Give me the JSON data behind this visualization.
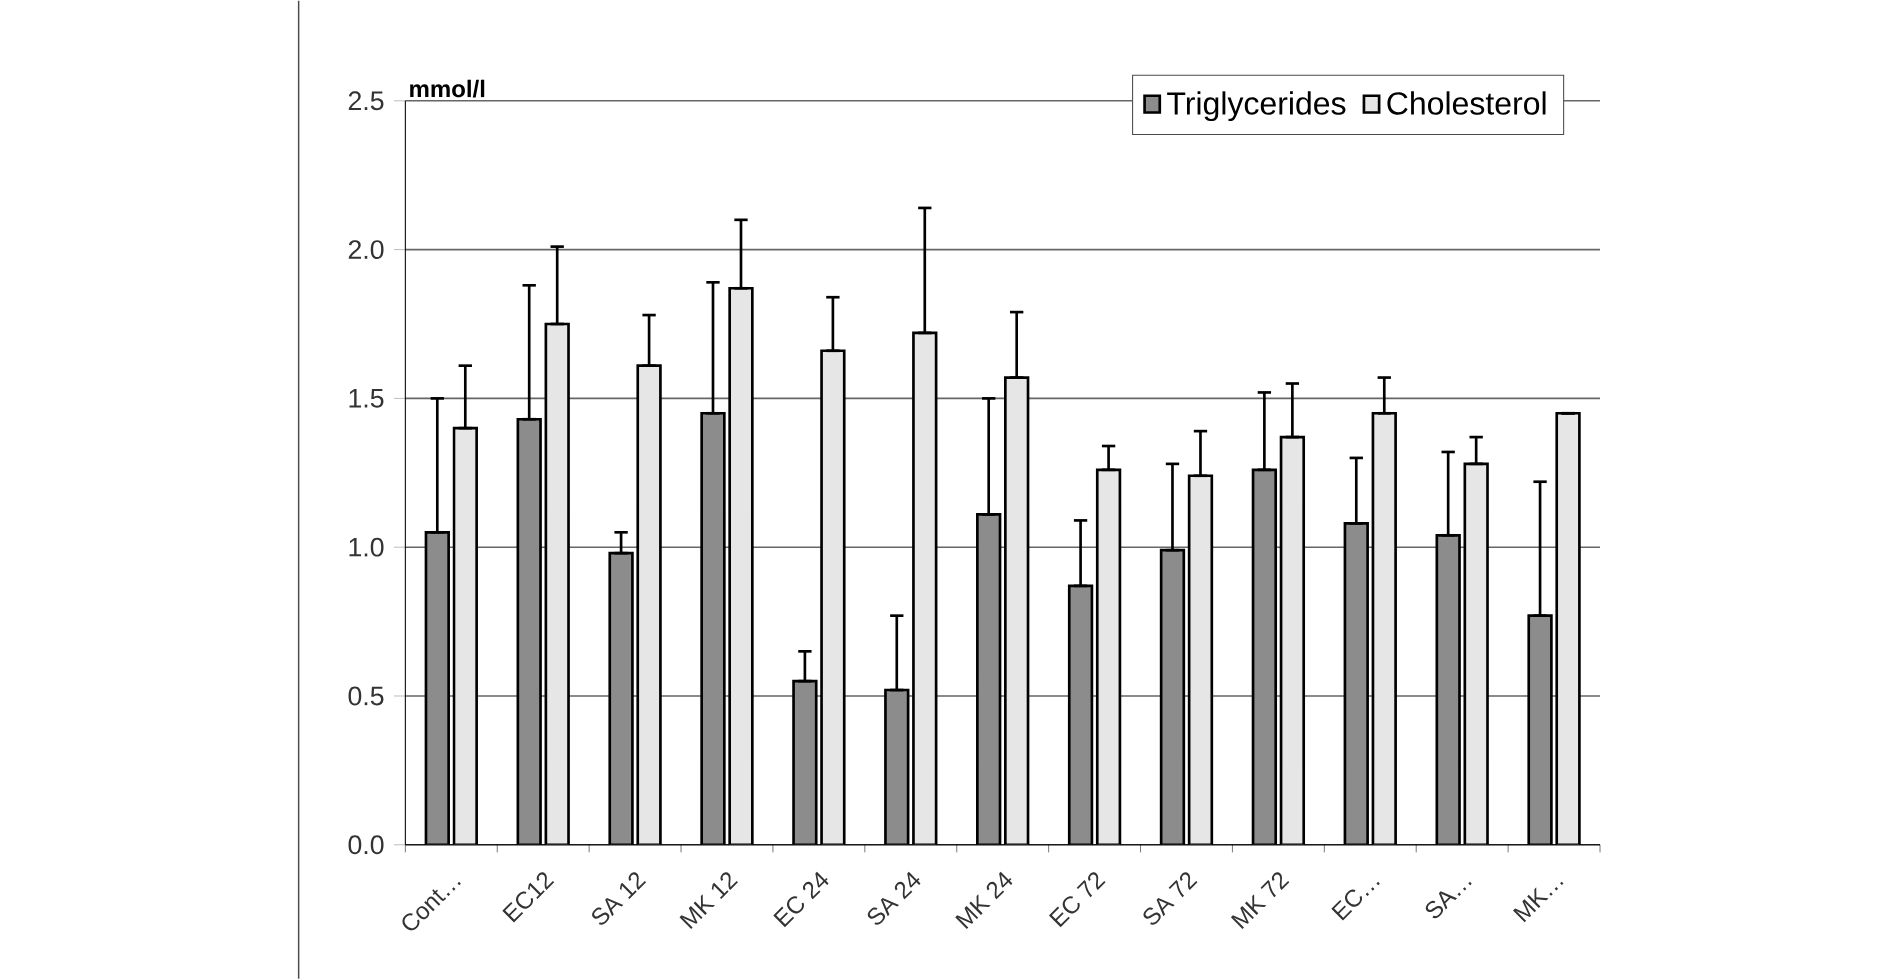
{
  "chart_data": {
    "type": "bar",
    "ylabel": "mmol/l",
    "categories": [
      "Cont…",
      "EC12",
      "SA 12",
      "MK 12",
      "EC 24",
      "SA 24",
      "MK 24",
      "EC 72",
      "SA 72",
      "MK 72",
      "EC…",
      "SA…",
      "MK…"
    ],
    "series": [
      {
        "name": "Triglycerides",
        "color": "#8c8c8c",
        "values": [
          1.05,
          1.43,
          0.98,
          1.45,
          0.55,
          0.52,
          1.11,
          0.87,
          0.99,
          1.26,
          1.08,
          1.04,
          0.77
        ],
        "errors": [
          [
            1.05,
            1.5
          ],
          [
            1.43,
            1.88
          ],
          [
            0.98,
            1.05
          ],
          [
            1.45,
            1.89
          ],
          [
            0.55,
            0.65
          ],
          [
            0.52,
            0.77
          ],
          [
            1.11,
            1.5
          ],
          [
            0.87,
            1.09
          ],
          [
            0.99,
            1.28
          ],
          [
            1.26,
            1.52
          ],
          [
            1.08,
            1.3
          ],
          [
            1.04,
            1.32
          ],
          [
            0.77,
            1.22
          ]
        ]
      },
      {
        "name": "Cholesterol",
        "color": "#e6e6e6",
        "values": [
          1.4,
          1.75,
          1.61,
          1.87,
          1.66,
          1.72,
          1.57,
          1.26,
          1.24,
          1.37,
          1.45,
          1.28,
          1.45
        ],
        "errors": [
          [
            1.4,
            1.61
          ],
          [
            1.75,
            2.01
          ],
          [
            1.61,
            1.78
          ],
          [
            1.87,
            2.1
          ],
          [
            1.66,
            1.84
          ],
          [
            1.72,
            2.14
          ],
          [
            1.57,
            1.79
          ],
          [
            1.26,
            1.34
          ],
          [
            1.24,
            1.39
          ],
          [
            1.37,
            1.55
          ],
          [
            1.45,
            1.57
          ],
          [
            1.28,
            1.37
          ],
          [
            1.45,
            1.45
          ]
        ]
      }
    ],
    "ylim": [
      0,
      2.5
    ],
    "yticks": [
      {
        "value": 0,
        "label": "0.0"
      },
      {
        "value": 0.5,
        "label": "0.5"
      },
      {
        "value": 1,
        "label": "1.0"
      },
      {
        "value": 1.5,
        "label": "1.5"
      },
      {
        "value": 2,
        "label": "2.0"
      },
      {
        "value": 2.5,
        "label": "2.5"
      }
    ],
    "grid": "y",
    "legend": "top right"
  }
}
